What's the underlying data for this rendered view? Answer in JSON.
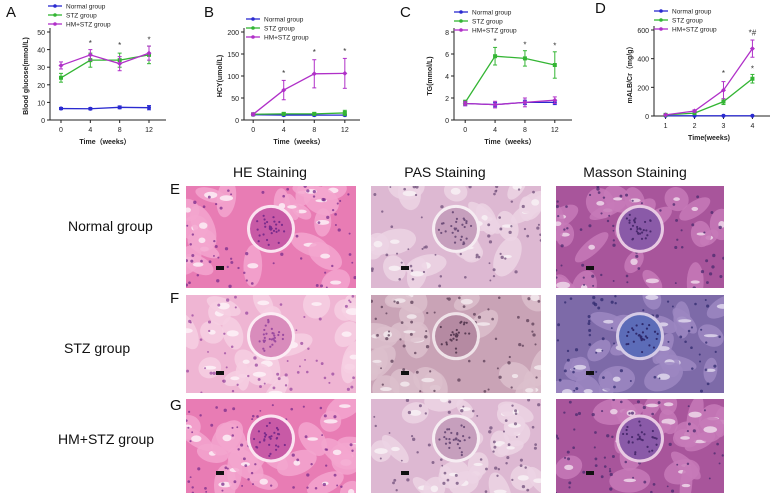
{
  "panels": {
    "A": "A",
    "B": "B",
    "C": "C",
    "D": "D",
    "E": "E",
    "F": "F",
    "G": "G"
  },
  "legend": [
    "Normal group",
    "STZ group",
    "HM+STZ group"
  ],
  "colors": {
    "normal": "#2a2ad0",
    "stz": "#33b533",
    "hm": "#b030c8"
  },
  "histology": {
    "columns": [
      "HE Staining",
      "PAS Staining",
      "Masson Staining"
    ],
    "rows": [
      "Normal group",
      "STZ group",
      "HM+STZ group"
    ]
  },
  "chart_data": [
    {
      "type": "line",
      "panel": "A",
      "xlabel": "Time（weeks）",
      "ylabel": "Blood glucose(mmol/L)",
      "x": [
        0,
        4,
        8,
        12
      ],
      "xticks": [
        "0",
        "4",
        "8",
        "12"
      ],
      "yticks": [
        "0",
        "10",
        "20",
        "30",
        "40",
        "50"
      ],
      "ylim": [
        0,
        50
      ],
      "series": [
        {
          "name": "Normal group",
          "values": [
            6.5,
            6.4,
            7.2,
            7.0
          ],
          "err": [
            0.6,
            0.6,
            0.8,
            1.2
          ]
        },
        {
          "name": "STZ group",
          "values": [
            24,
            34,
            34,
            37
          ],
          "err": [
            2.5,
            4,
            4,
            5
          ]
        },
        {
          "name": "HM+STZ group",
          "values": [
            31,
            37,
            32,
            38
          ],
          "err": [
            2,
            3,
            4,
            4
          ]
        }
      ],
      "annotations": [
        {
          "x": 4,
          "y": 42,
          "text": "*"
        },
        {
          "x": 8,
          "y": 41,
          "text": "*"
        },
        {
          "x": 12,
          "y": 44,
          "text": "*"
        }
      ]
    },
    {
      "type": "line",
      "panel": "B",
      "xlabel": "Time（weeks）",
      "ylabel": "HCY(umol/L)",
      "x": [
        0,
        4,
        8,
        12
      ],
      "xticks": [
        "0",
        "4",
        "8",
        "12"
      ],
      "yticks": [
        "0",
        "50",
        "100",
        "150",
        "200"
      ],
      "ylim": [
        0,
        200
      ],
      "series": [
        {
          "name": "Normal group",
          "values": [
            12,
            11,
            11,
            11
          ],
          "err": [
            2,
            2,
            2,
            2
          ]
        },
        {
          "name": "STZ group",
          "values": [
            13,
            14,
            14,
            16
          ],
          "err": [
            3,
            3,
            3,
            6
          ]
        },
        {
          "name": "HM+STZ group",
          "values": [
            13,
            68,
            105,
            106
          ],
          "err": [
            3,
            22,
            32,
            34
          ]
        }
      ],
      "annotations": [
        {
          "x": 4,
          "y": 100,
          "text": "*"
        },
        {
          "x": 8,
          "y": 148,
          "text": "*"
        },
        {
          "x": 12,
          "y": 150,
          "text": "*"
        }
      ]
    },
    {
      "type": "line",
      "panel": "C",
      "xlabel": "Time（weeks）",
      "ylabel": "TG(mmol/L)",
      "x": [
        0,
        4,
        8,
        12
      ],
      "xticks": [
        "0",
        "4",
        "8",
        "12"
      ],
      "yticks": [
        "0",
        "2",
        "4",
        "6",
        "8"
      ],
      "ylim": [
        0,
        8
      ],
      "series": [
        {
          "name": "Normal group",
          "values": [
            1.5,
            1.4,
            1.6,
            1.6
          ],
          "err": [
            0.2,
            0.2,
            0.2,
            0.2
          ]
        },
        {
          "name": "STZ group",
          "values": [
            1.6,
            5.8,
            5.6,
            5.0
          ],
          "err": [
            0.2,
            0.8,
            0.7,
            1.2
          ]
        },
        {
          "name": "HM+STZ group",
          "values": [
            1.5,
            1.4,
            1.6,
            1.8
          ],
          "err": [
            0.2,
            0.3,
            0.4,
            0.3
          ]
        }
      ],
      "annotations": [
        {
          "x": 4,
          "y": 6.9,
          "text": "*"
        },
        {
          "x": 8,
          "y": 6.6,
          "text": "*"
        },
        {
          "x": 12,
          "y": 6.5,
          "text": "*"
        }
      ]
    },
    {
      "type": "line",
      "panel": "D",
      "xlabel": "Time(weeks)",
      "ylabel": "mALB/Cr（mg/g）",
      "x": [
        1,
        2,
        3,
        4
      ],
      "xticks": [
        "1",
        "2",
        "3",
        "4"
      ],
      "yticks": [
        "0",
        "200",
        "400",
        "600"
      ],
      "ylim": [
        0,
        600
      ],
      "series": [
        {
          "name": "Normal group",
          "values": [
            2,
            2,
            2,
            2
          ],
          "err": [
            1,
            1,
            1,
            1
          ]
        },
        {
          "name": "STZ group",
          "values": [
            8,
            20,
            100,
            260
          ],
          "err": [
            3,
            5,
            20,
            30
          ]
        },
        {
          "name": "HM+STZ group",
          "values": [
            8,
            35,
            180,
            470
          ],
          "err": [
            3,
            8,
            60,
            60
          ]
        }
      ],
      "annotations": [
        {
          "x": 3,
          "y": 280,
          "text": "*"
        },
        {
          "x": 4,
          "y": 560,
          "text": "*#"
        },
        {
          "x": 4,
          "y": 310,
          "text": "*"
        }
      ]
    }
  ]
}
